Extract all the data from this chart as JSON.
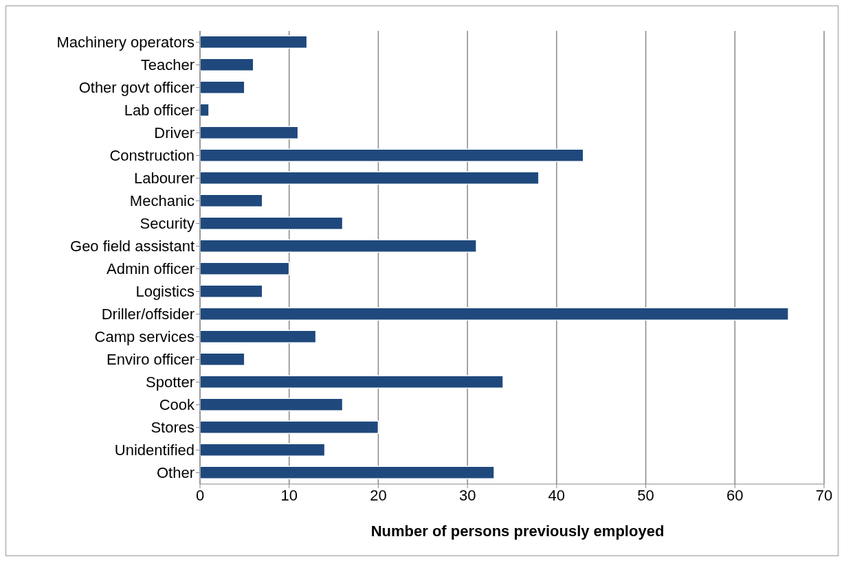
{
  "chart_data": {
    "type": "bar",
    "orientation": "horizontal",
    "xlabel": "Number of persons previously employed",
    "categories": [
      "Machinery operators",
      "Teacher",
      "Other govt officer",
      "Lab officer",
      "Driver",
      "Construction",
      "Labourer",
      "Mechanic",
      "Security",
      "Geo field assistant",
      "Admin officer",
      "Logistics",
      "Driller/offsider",
      "Camp services",
      "Enviro officer",
      "Spotter",
      "Cook",
      "Stores",
      "Unidentified",
      "Other"
    ],
    "values": [
      12,
      6,
      5,
      1,
      11,
      43,
      38,
      7,
      16,
      31,
      10,
      7,
      66,
      13,
      5,
      34,
      16,
      20,
      14,
      33
    ],
    "color": "#1f497d",
    "xlim": [
      0,
      70
    ],
    "xticks": [
      0,
      10,
      20,
      30,
      40,
      50,
      60,
      70
    ],
    "grid": "x"
  }
}
